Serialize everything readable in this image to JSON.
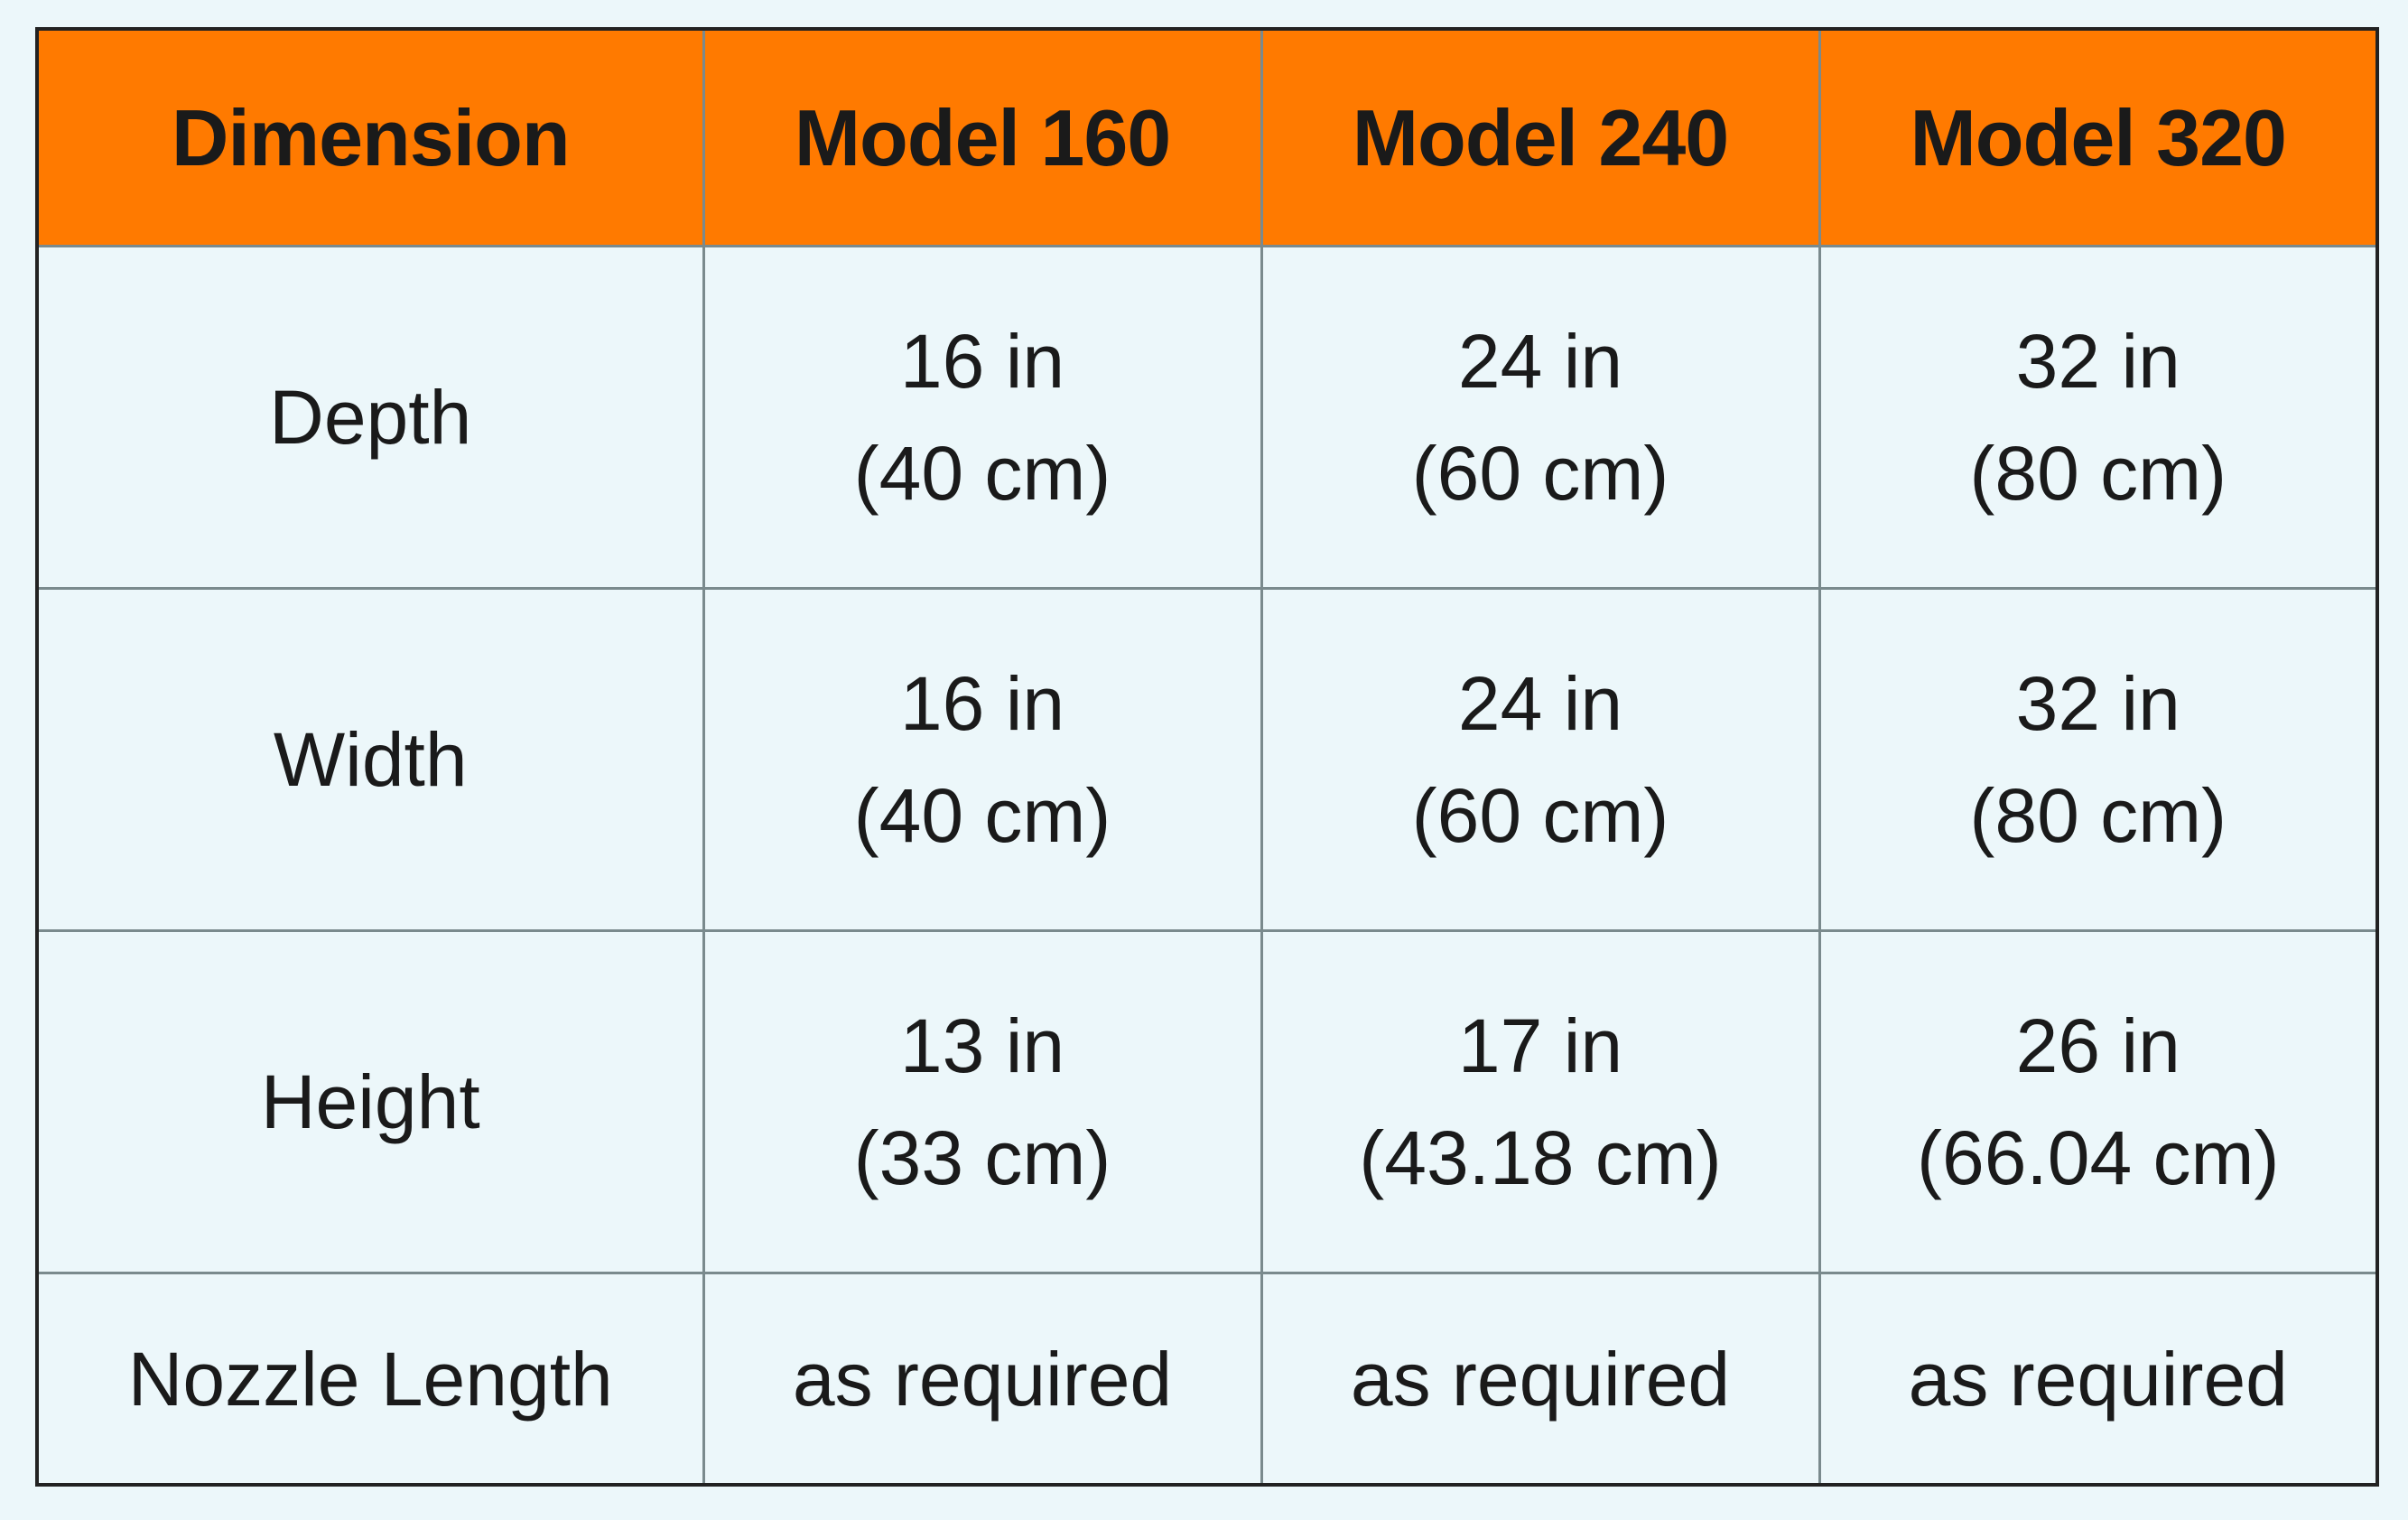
{
  "table": {
    "headers": [
      "Dimension",
      "Model 160",
      "Model 240",
      "Model 320"
    ],
    "rows": [
      {
        "label": "Depth",
        "values": [
          {
            "line1": "16 in",
            "line2": "(40 cm)"
          },
          {
            "line1": "24 in",
            "line2": "(60 cm)"
          },
          {
            "line1": "32 in",
            "line2": "(80 cm)"
          }
        ]
      },
      {
        "label": "Width",
        "values": [
          {
            "line1": "16 in",
            "line2": "(40 cm)"
          },
          {
            "line1": "24 in",
            "line2": "(60 cm)"
          },
          {
            "line1": "32 in",
            "line2": "(80 cm)"
          }
        ]
      },
      {
        "label": "Height",
        "values": [
          {
            "line1": "13 in",
            "line2": "(33 cm)"
          },
          {
            "line1": "17 in",
            "line2": "(43.18 cm)"
          },
          {
            "line1": "26 in",
            "line2": "(66.04 cm)"
          }
        ]
      },
      {
        "label": "Nozzle Length",
        "values": [
          {
            "line1": "as required"
          },
          {
            "line1": "as required"
          },
          {
            "line1": "as required"
          }
        ]
      }
    ]
  },
  "colors": {
    "header_background": "#ff7a00",
    "body_background": "#ecf7fa",
    "grid_line": "#7a8a8d",
    "outer_border": "#222222",
    "text": "#1a1a1a"
  }
}
